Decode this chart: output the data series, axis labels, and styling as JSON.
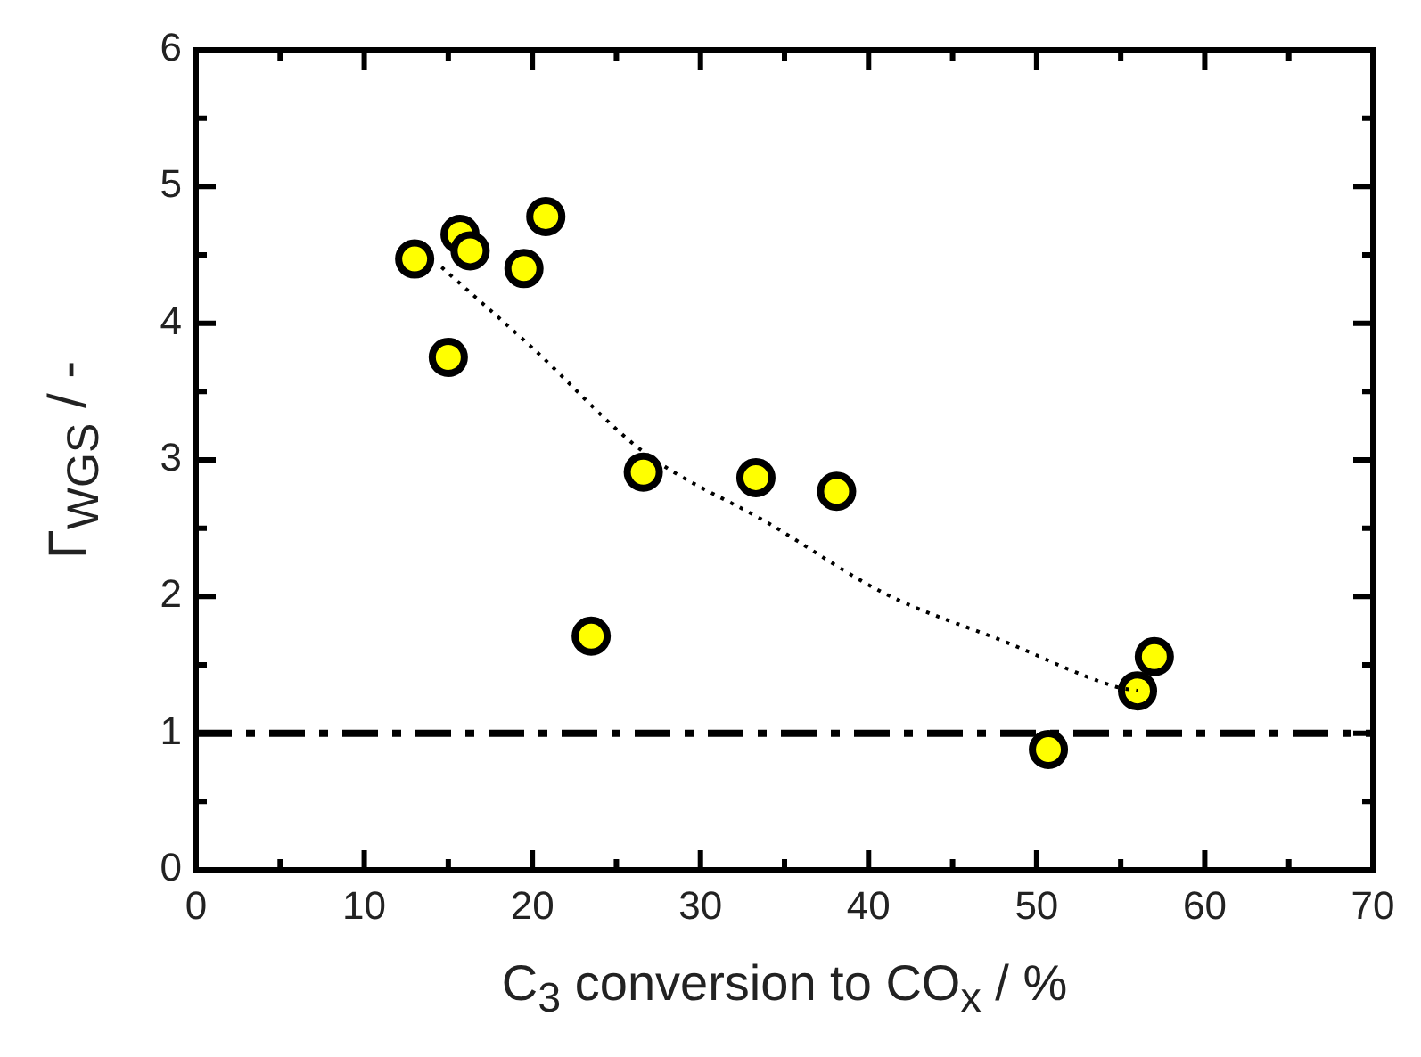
{
  "chart_data": {
    "type": "scatter",
    "xlabel": "C$_{3}$ conversion to CO$_{x}$ / %",
    "ylabel": "Γ$_{WGS}$ / -",
    "xlim": [
      0,
      70
    ],
    "ylim": [
      0,
      6
    ],
    "xticks": [
      0,
      {
        "value": 5,
        "label": null
      },
      10,
      {
        "value": 15,
        "label": null
      },
      20,
      {
        "value": 25,
        "label": null
      },
      30,
      {
        "value": 35,
        "label": null
      },
      40,
      {
        "value": 45,
        "label": null
      },
      50,
      {
        "value": 55,
        "label": null
      },
      60,
      {
        "value": 65,
        "label": null
      },
      70
    ],
    "yticks": [
      0,
      {
        "value": 0.5,
        "label": null
      },
      1,
      {
        "value": 1.5,
        "label": null
      },
      2,
      {
        "value": 2.5,
        "label": null
      },
      3,
      {
        "value": 3.5,
        "label": null
      },
      4,
      {
        "value": 4.5,
        "label": null
      },
      5,
      {
        "value": 5.5,
        "label": null
      },
      6
    ],
    "grid": false,
    "legend": false,
    "marker": "circle",
    "series": [
      {
        "color": "#ffff00",
        "x": [
          13.0,
          15.7,
          16.3,
          15.0,
          19.5,
          20.8,
          23.5,
          26.6,
          33.3,
          38.1,
          50.7,
          56.0,
          57.0
        ],
        "values": [
          4.47,
          4.65,
          4.53,
          3.75,
          4.4,
          4.78,
          1.71,
          2.91,
          2.87,
          2.77,
          0.88,
          1.31,
          1.56
        ]
      },
      {
        "type": "line",
        "color": "#000000",
        "line_style": "dotted",
        "marker": "none",
        "x": [
          14.6,
          20,
          26.6,
          34,
          41,
          48.1,
          54.7,
          56
        ],
        "values": [
          4.41,
          3.82,
          3.06,
          2.54,
          2.02,
          1.67,
          1.34,
          1.31
        ]
      }
    ],
    "ref_lines": [
      {
        "axis": "y",
        "value": 1,
        "color": "#000000",
        "line_style": "dashdot"
      }
    ]
  }
}
